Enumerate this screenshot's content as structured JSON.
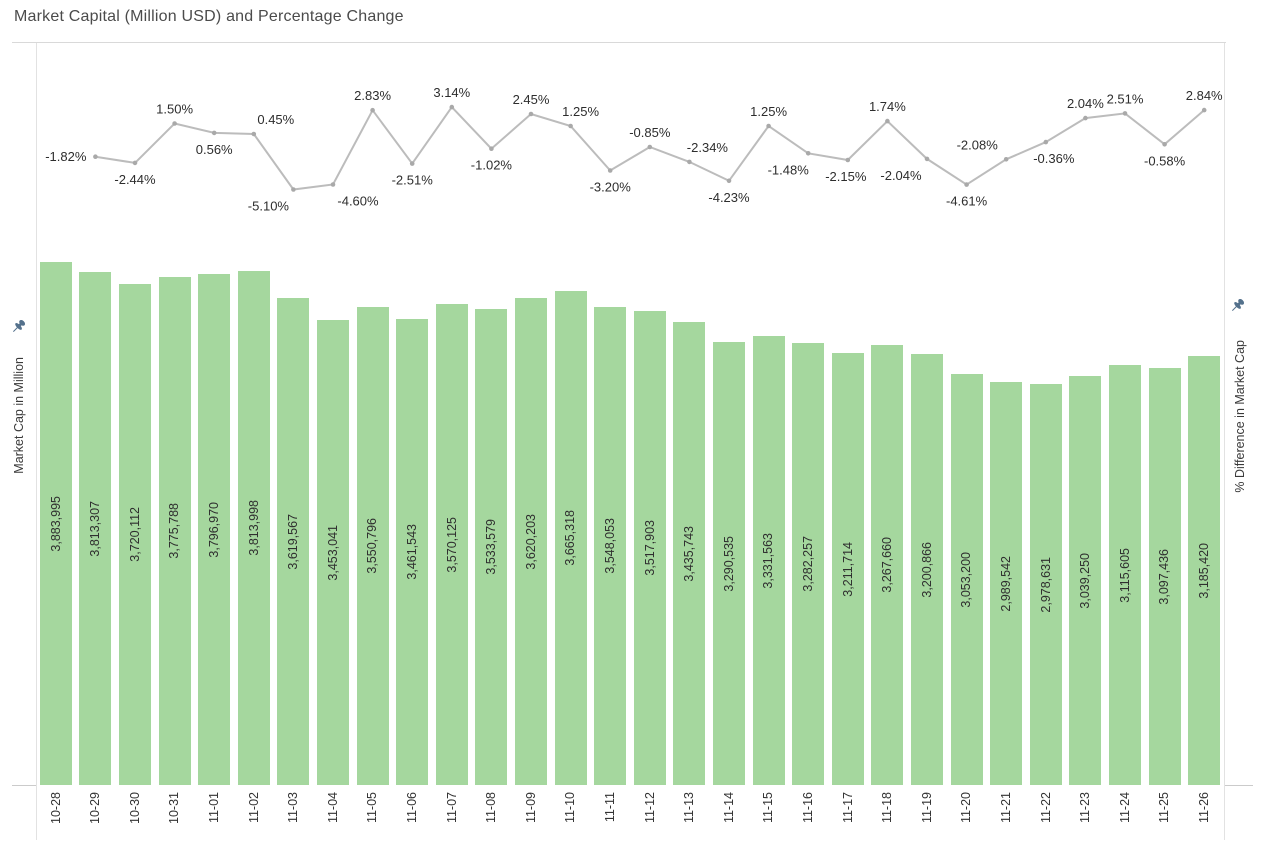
{
  "title": "Market Capital (Million USD) and Percentage Change",
  "left_axis": {
    "title": "Market Cap in Million",
    "pinned": true
  },
  "right_axis": {
    "title": "% Difference in Market Cap",
    "pinned": true
  },
  "x_axis": {
    "labels": [
      "10-28",
      "10-29",
      "10-30",
      "10-31",
      "11-01",
      "11-02",
      "11-03",
      "11-04",
      "11-05",
      "11-06",
      "11-07",
      "11-08",
      "11-09",
      "11-10",
      "11-11",
      "11-12",
      "11-13",
      "11-14",
      "11-15",
      "11-16",
      "11-17",
      "11-18",
      "11-19",
      "11-20",
      "11-21",
      "11-22",
      "11-23",
      "11-24",
      "11-25",
      "11-26"
    ]
  },
  "colors": {
    "bar": "#a5d79e",
    "line": "#bcbcbc",
    "marker": "#a9a9a9",
    "percent_label": "#2d2d2d",
    "bar_label": "#2f2f2f",
    "title": "#4b4b4b",
    "axis_border": "#e2e2e2",
    "pin": "#54718c"
  },
  "chart_data": {
    "type": "bar",
    "subtype": "bar-line-combo",
    "title": "Market Capital (Million USD) and Percentage Change",
    "xlabel": "",
    "grid": false,
    "legend": "none",
    "categories": [
      "10-28",
      "10-29",
      "10-30",
      "10-31",
      "11-01",
      "11-02",
      "11-03",
      "11-04",
      "11-05",
      "11-06",
      "11-07",
      "11-08",
      "11-09",
      "11-10",
      "11-11",
      "11-12",
      "11-13",
      "11-14",
      "11-15",
      "11-16",
      "11-17",
      "11-18",
      "11-19",
      "11-20",
      "11-21",
      "11-22",
      "11-23",
      "11-24",
      "11-25",
      "11-26"
    ],
    "series": [
      {
        "name": "Market Cap in Million",
        "type": "bar",
        "axis": "left",
        "ylim": [
          0,
          3950000
        ],
        "values": [
          3883995,
          3813307,
          3720112,
          3775788,
          3796970,
          3813998,
          3619567,
          3453041,
          3550796,
          3461543,
          3570125,
          3533579,
          3620203,
          3665318,
          3548053,
          3517903,
          3435743,
          3290535,
          3331563,
          3282257,
          3211714,
          3267660,
          3200866,
          3053200,
          2989542,
          2978631,
          3039250,
          3115605,
          3097436,
          3185420
        ],
        "labels": [
          "3,883,995",
          "3,813,307",
          "3,720,112",
          "3,775,788",
          "3,796,970",
          "3,813,998",
          "3,619,567",
          "3,453,041",
          "3,550,796",
          "3,461,543",
          "3,570,125",
          "3,533,579",
          "3,620,203",
          "3,665,318",
          "3,548,053",
          "3,517,903",
          "3,435,743",
          "3,290,535",
          "3,331,563",
          "3,282,257",
          "3,211,714",
          "3,267,660",
          "3,200,866",
          "3,053,200",
          "2,989,542",
          "2,978,631",
          "3,039,250",
          "3,115,605",
          "3,097,436",
          "3,185,420"
        ]
      },
      {
        "name": "% Difference in Market Cap",
        "type": "line",
        "axis": "right",
        "ylim": [
          -5.5,
          3.5
        ],
        "x_categories": [
          "10-29",
          "10-30",
          "10-31",
          "11-01",
          "11-02",
          "11-03",
          "11-04",
          "11-05",
          "11-06",
          "11-07",
          "11-08",
          "11-09",
          "11-10",
          "11-11",
          "11-12",
          "11-13",
          "11-14",
          "11-15",
          "11-16",
          "11-17",
          "11-18",
          "11-19",
          "11-20",
          "11-21",
          "11-22",
          "11-23",
          "11-24",
          "11-25",
          "11-26"
        ],
        "values": [
          -1.82,
          -2.44,
          1.5,
          0.56,
          0.45,
          -5.1,
          -4.6,
          2.83,
          -2.51,
          3.14,
          -1.02,
          2.45,
          1.25,
          -3.2,
          -0.85,
          -2.34,
          -4.23,
          1.25,
          -1.48,
          -2.15,
          1.74,
          -2.04,
          -4.61,
          -2.08,
          -0.36,
          2.04,
          2.51,
          -0.58,
          2.84
        ],
        "labels": [
          "-1.82%",
          "-2.44%",
          "1.50%",
          "0.56%",
          "0.45%",
          "-5.10%",
          "-4.60%",
          "2.83%",
          "-2.51%",
          "3.14%",
          "-1.02%",
          "2.45%",
          "1.25%",
          "-3.20%",
          "-0.85%",
          "-2.34%",
          "-4.23%",
          "1.25%",
          "-1.48%",
          "-2.15%",
          "1.74%",
          "-2.04%",
          "-4.61%",
          "-2.08%",
          "-0.36%",
          "2.04%",
          "2.51%",
          "-0.58%",
          "2.84%"
        ],
        "label_layout": [
          {
            "pos": "left",
            "dx": 0
          },
          {
            "pos": "below",
            "dx": 0
          },
          {
            "pos": "above",
            "dx": 0
          },
          {
            "pos": "below",
            "dx": 0
          },
          {
            "pos": "above",
            "dx": 22
          },
          {
            "pos": "below",
            "dx": -25
          },
          {
            "pos": "below",
            "dx": 25
          },
          {
            "pos": "above",
            "dx": 0
          },
          {
            "pos": "below",
            "dx": 0
          },
          {
            "pos": "above",
            "dx": 0
          },
          {
            "pos": "below",
            "dx": 0
          },
          {
            "pos": "above",
            "dx": 0
          },
          {
            "pos": "above",
            "dx": 10
          },
          {
            "pos": "below",
            "dx": 0
          },
          {
            "pos": "above",
            "dx": 0
          },
          {
            "pos": "above",
            "dx": 18
          },
          {
            "pos": "below",
            "dx": 0
          },
          {
            "pos": "above",
            "dx": 0
          },
          {
            "pos": "below",
            "dx": -20
          },
          {
            "pos": "below",
            "dx": -2
          },
          {
            "pos": "above",
            "dx": 0
          },
          {
            "pos": "below",
            "dx": -26
          },
          {
            "pos": "below",
            "dx": 0
          },
          {
            "pos": "above",
            "dx": -29
          },
          {
            "pos": "below",
            "dx": 8
          },
          {
            "pos": "above",
            "dx": 0
          },
          {
            "pos": "above",
            "dx": 0
          },
          {
            "pos": "below",
            "dx": 0
          },
          {
            "pos": "above",
            "dx": 0
          }
        ]
      }
    ]
  }
}
